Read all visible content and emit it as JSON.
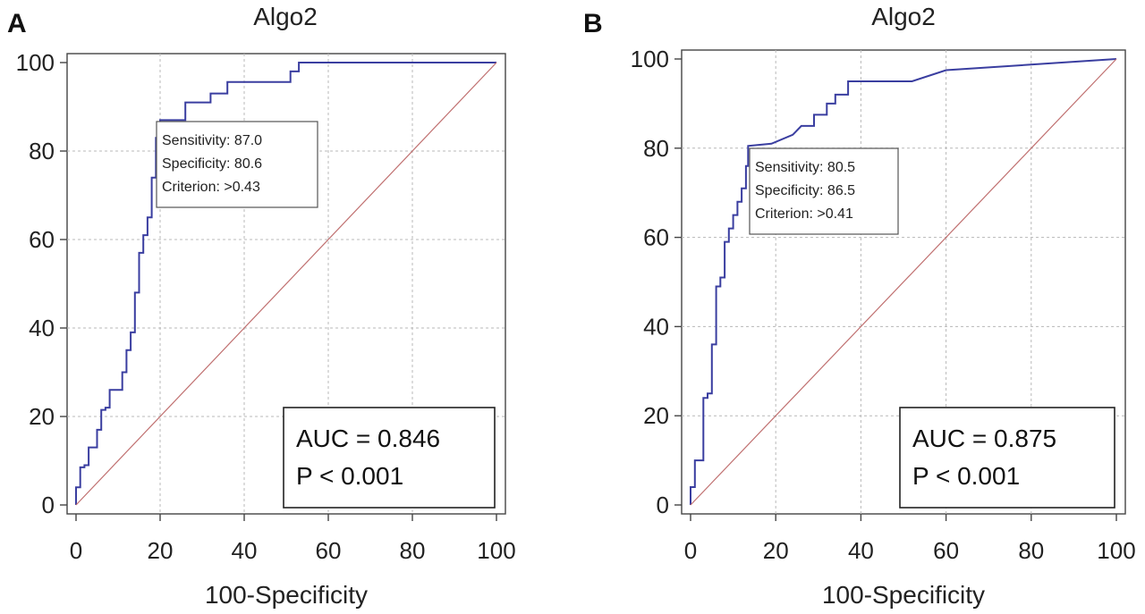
{
  "chart_data": [
    {
      "type": "line",
      "panel_label": "A",
      "title": "Algo2",
      "xlabel": "100-Specificity",
      "ylabel": "",
      "xlim": [
        0,
        100
      ],
      "ylim": [
        0,
        100
      ],
      "xticks": [
        "0",
        "20",
        "40",
        "60",
        "80",
        "100"
      ],
      "yticks": [
        "0",
        "20",
        "40",
        "60",
        "80",
        "100"
      ],
      "grid": true,
      "series": [
        {
          "color": "#3a3ea0",
          "x": [
            0,
            0,
            1,
            1,
            2,
            2,
            3,
            3,
            5,
            5,
            6,
            6,
            7,
            7,
            8,
            8,
            11,
            11,
            12,
            12,
            13,
            13,
            14,
            14,
            15,
            15,
            16,
            16,
            17,
            17,
            18,
            18,
            19,
            19,
            20,
            20,
            26,
            26,
            32,
            32,
            36,
            36,
            51,
            51,
            53,
            53,
            100
          ],
          "y": [
            0,
            4,
            4,
            8.5,
            8.5,
            9,
            9,
            13,
            13,
            17,
            17,
            21.5,
            21.5,
            22,
            22,
            26,
            26,
            30,
            30,
            35,
            35,
            39,
            39,
            48,
            48,
            57,
            57,
            61,
            61,
            65,
            65,
            74,
            74,
            83,
            83,
            87,
            87,
            91,
            91,
            93,
            93,
            95.6,
            95.6,
            98,
            98,
            100,
            100
          ]
        },
        {
          "color": "#c07070",
          "x": [
            0,
            100
          ],
          "y": [
            0,
            100
          ]
        }
      ],
      "annotation": {
        "point": [
          19.4,
          87.0
        ],
        "lines": [
          "Sensitivity: 87.0",
          "Specificity: 80.6",
          "Criterion: >0.43"
        ]
      },
      "stats": [
        "AUC = 0.846",
        "P < 0.001"
      ]
    },
    {
      "type": "line",
      "panel_label": "B",
      "title": "Algo2",
      "xlabel": "100-Specificity",
      "ylabel": "",
      "xlim": [
        0,
        100
      ],
      "ylim": [
        0,
        100
      ],
      "xticks": [
        "0",
        "20",
        "40",
        "60",
        "80",
        "100"
      ],
      "yticks": [
        "0",
        "20",
        "40",
        "60",
        "80",
        "100"
      ],
      "grid": true,
      "series": [
        {
          "color": "#3a3ea0",
          "x": [
            0,
            0,
            1,
            1,
            3,
            3,
            4,
            4,
            5,
            5,
            6,
            6,
            7,
            7,
            8,
            8,
            9,
            9,
            10,
            10,
            11,
            11,
            12,
            12,
            13,
            13,
            13.5,
            13.5,
            19,
            24,
            26,
            29,
            29,
            32,
            32,
            34,
            34,
            37,
            37,
            40,
            40,
            52,
            60,
            100
          ],
          "y": [
            0,
            4,
            4,
            10,
            10,
            24,
            24,
            25,
            25,
            36,
            36,
            49,
            49,
            51,
            51,
            59,
            59,
            62,
            62,
            65,
            65,
            68,
            68,
            71,
            71,
            76,
            76,
            80.5,
            81,
            83,
            85,
            85,
            87.5,
            87.5,
            90,
            90,
            92,
            92,
            95,
            95,
            95,
            95,
            97.5,
            100
          ]
        },
        {
          "color": "#c07070",
          "x": [
            0,
            100
          ],
          "y": [
            0,
            100
          ]
        }
      ],
      "annotation": {
        "point": [
          13.5,
          80.5
        ],
        "lines": [
          "Sensitivity: 80.5",
          "Specificity: 86.5",
          "Criterion: >0.41"
        ]
      },
      "stats": [
        "AUC = 0.875",
        "P < 0.001"
      ]
    }
  ]
}
